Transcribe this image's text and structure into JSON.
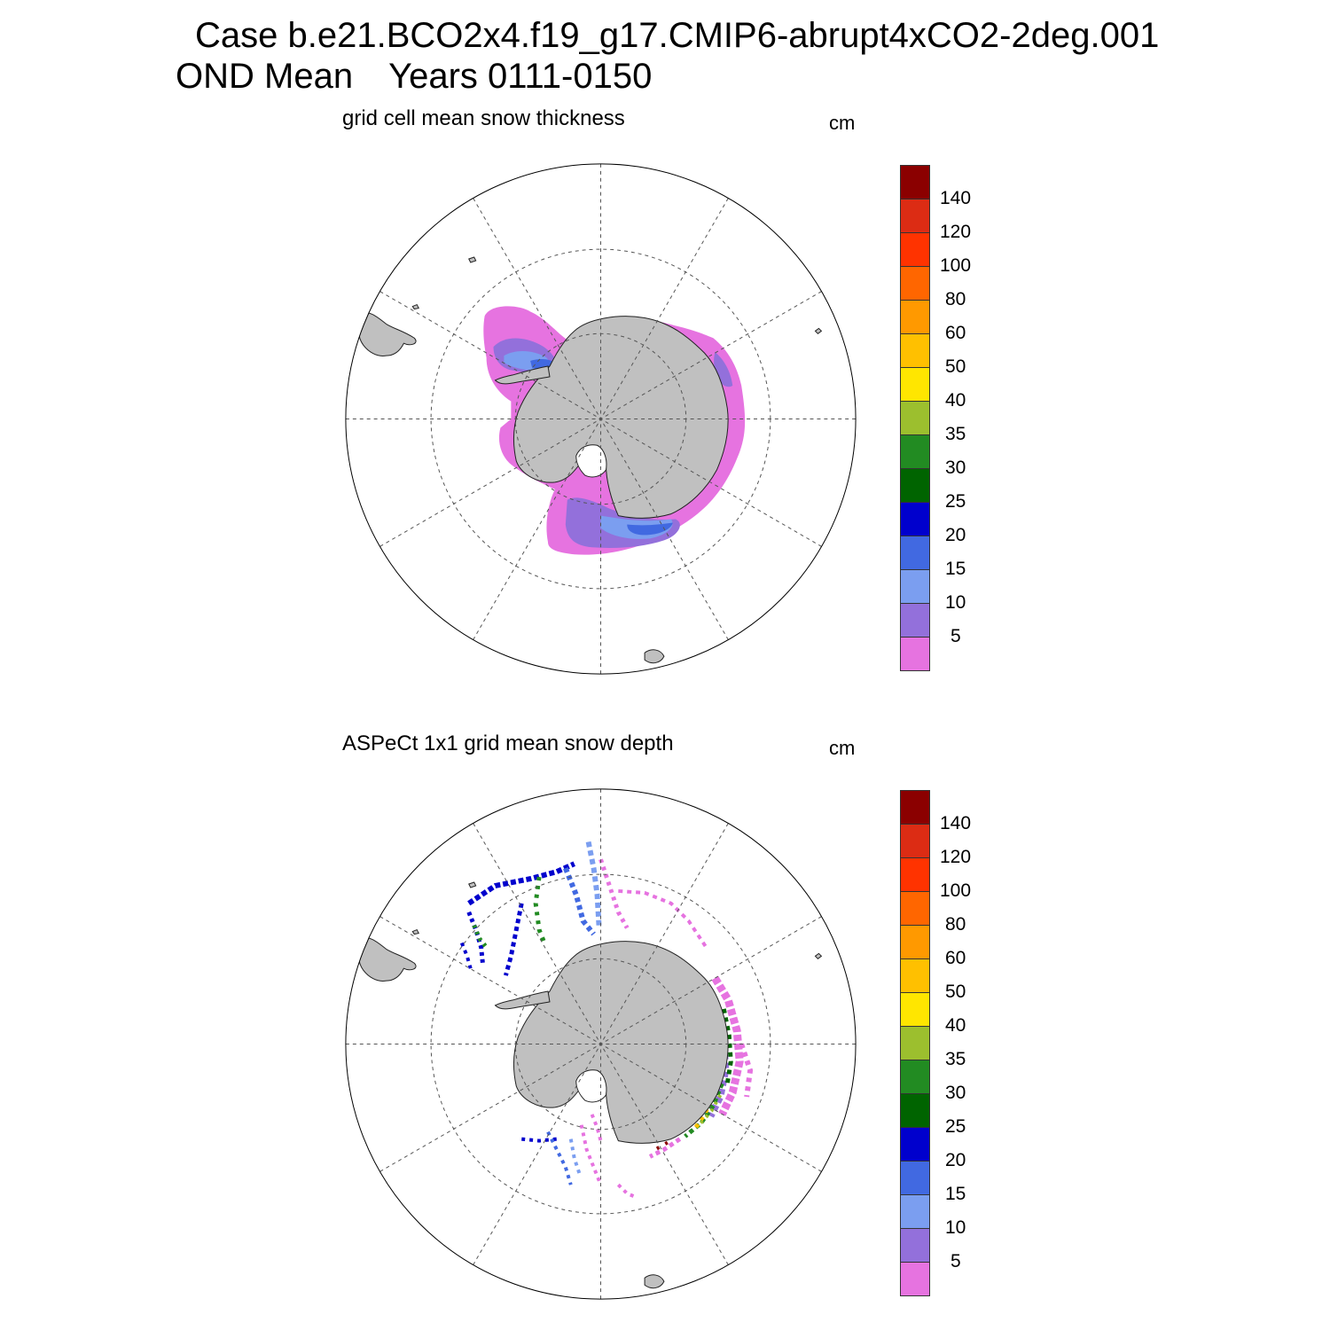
{
  "title": {
    "line1": "Case b.e21.BCO2x4.f19_g17.CMIP6-abrupt4xCO2-2deg.001",
    "season": "OND Mean",
    "years": "Years 0111-0150"
  },
  "panels": [
    {
      "title": "grid cell mean snow thickness",
      "units": "cm"
    },
    {
      "title": "ASPeCt 1x1 grid mean snow depth",
      "units": "cm"
    }
  ],
  "colorbar": {
    "labels": [
      "140",
      "120",
      "100",
      "80",
      "60",
      "50",
      "40",
      "35",
      "30",
      "25",
      "20",
      "15",
      "10",
      "5"
    ],
    "colors": [
      "#8b0000",
      "#dc2c14",
      "#ff3300",
      "#ff6600",
      "#ff9900",
      "#ffc000",
      "#ffe600",
      "#9cbf2e",
      "#228b22",
      "#006400",
      "#0000cd",
      "#4169e1",
      "#7b9ef0",
      "#9370db",
      "#e673e0"
    ]
  },
  "style": {
    "land": "#c0c0c0",
    "grid": "#555555"
  }
}
